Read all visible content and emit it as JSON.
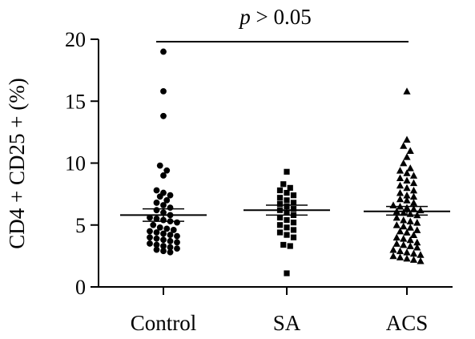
{
  "chart_data": {
    "type": "scatter",
    "ylabel": "CD4 + CD25 + (%)",
    "ylim": [
      0,
      20
    ],
    "yticks": [
      "0",
      "5",
      "10",
      "15",
      "20"
    ],
    "categories": [
      "Control",
      "SA",
      "ACS"
    ],
    "annotation": {
      "p_letter": "p",
      "rest": " > 0.05"
    },
    "groups": [
      {
        "name": "Control",
        "marker": "circle",
        "mean": 5.8,
        "sem_upper": 6.3,
        "sem_lower": 5.3,
        "values": [
          19.0,
          15.8,
          13.8,
          9.8,
          9.4,
          9.0,
          7.8,
          7.6,
          7.4,
          7.3,
          7.0,
          6.8,
          6.6,
          6.4,
          6.2,
          6.0,
          5.8,
          5.6,
          5.5,
          5.4,
          5.3,
          5.2,
          5.0,
          4.8,
          4.7,
          4.6,
          4.5,
          4.4,
          4.3,
          4.2,
          4.1,
          4.0,
          3.9,
          3.8,
          3.7,
          3.6,
          3.5,
          3.4,
          3.3,
          3.2,
          3.1,
          3.0,
          2.9,
          2.8
        ]
      },
      {
        "name": "SA",
        "marker": "square",
        "mean": 6.2,
        "sem_upper": 6.6,
        "sem_lower": 5.8,
        "values": [
          9.3,
          8.3,
          8.0,
          7.8,
          7.6,
          7.4,
          7.2,
          7.0,
          6.8,
          6.7,
          6.5,
          6.3,
          6.2,
          6.0,
          5.8,
          5.6,
          5.4,
          5.2,
          5.0,
          4.8,
          4.6,
          4.4,
          4.2,
          4.0,
          3.4,
          3.3,
          1.1
        ]
      },
      {
        "name": "ACS",
        "marker": "triangle",
        "mean": 6.1,
        "sem_upper": 6.5,
        "sem_lower": 5.8,
        "values": [
          15.8,
          11.9,
          11.4,
          11.0,
          10.5,
          10.0,
          9.6,
          9.4,
          9.2,
          9.0,
          8.8,
          8.6,
          8.4,
          8.2,
          8.0,
          7.8,
          7.6,
          7.4,
          7.3,
          7.1,
          7.0,
          6.8,
          6.6,
          6.5,
          6.4,
          6.3,
          6.2,
          6.1,
          6.0,
          5.9,
          5.8,
          5.6,
          5.4,
          5.3,
          5.2,
          5.0,
          4.9,
          4.8,
          4.6,
          4.5,
          4.4,
          4.2,
          4.0,
          3.9,
          3.8,
          3.6,
          3.5,
          3.4,
          3.3,
          3.2,
          3.0,
          2.9,
          2.8,
          2.7,
          2.6,
          2.5,
          2.4,
          2.3,
          2.2,
          2.1
        ]
      }
    ]
  }
}
